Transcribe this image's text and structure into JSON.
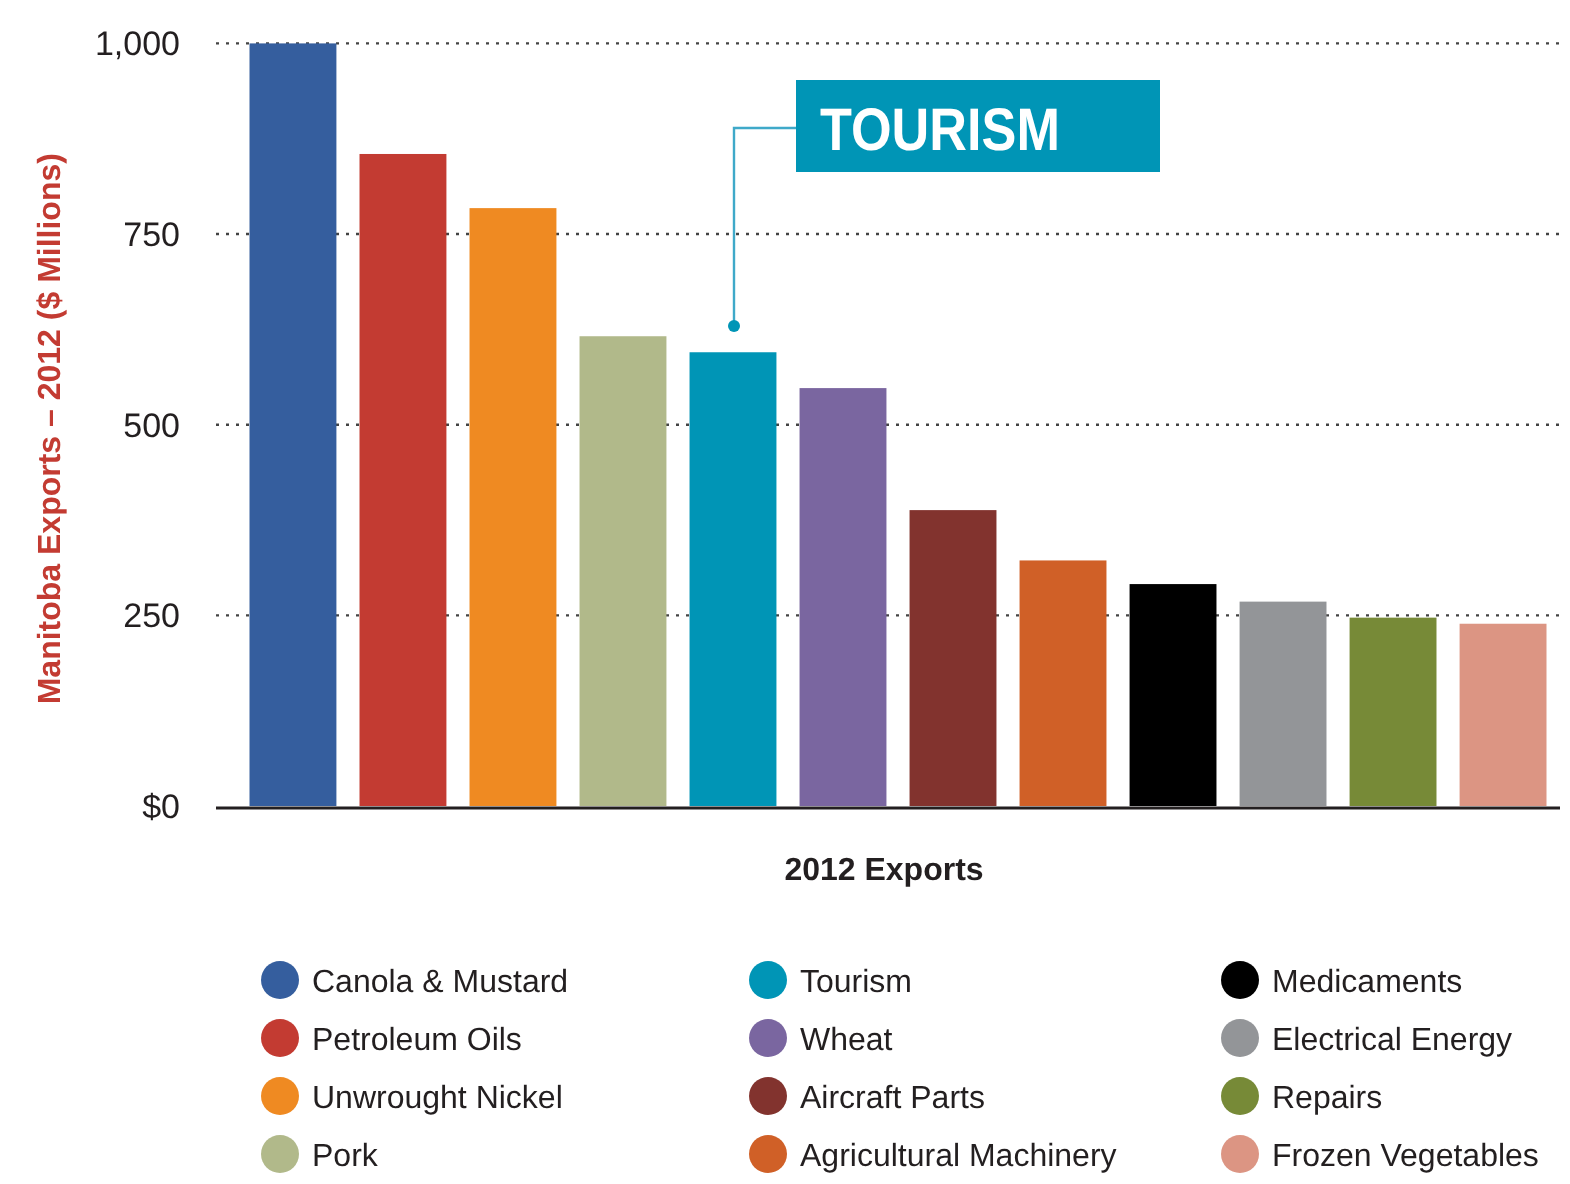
{
  "chart_data": {
    "type": "bar",
    "xlabel": "2012 Exports",
    "ylabel": "Manitoba Exports – 2012 ($ Millions)",
    "stacked": true,
    "categories": [
      null,
      null,
      null,
      null,
      null,
      null,
      null,
      null,
      null,
      null,
      null,
      null
    ],
    "series": [
      {
        "name": "Canola & Mustard",
        "color": "#355e9e",
        "values": [
          1000,
          null,
          null,
          null,
          null,
          null,
          null,
          null,
          null,
          null,
          null,
          null
        ]
      },
      {
        "name": "Petroleum Oils",
        "color": "#c33b32",
        "values": [
          null,
          855,
          null,
          null,
          null,
          null,
          null,
          null,
          null,
          null,
          null,
          null
        ]
      },
      {
        "name": "Unwrought Nickel",
        "color": "#ef8a22",
        "values": [
          null,
          null,
          784,
          null,
          null,
          null,
          null,
          null,
          null,
          null,
          null,
          null
        ]
      },
      {
        "name": "Pork",
        "color": "#b1b98a",
        "values": [
          null,
          null,
          null,
          616,
          null,
          null,
          null,
          null,
          null,
          null,
          null,
          null
        ]
      },
      {
        "name": "Tourism",
        "color": "#0095b6",
        "values": [
          null,
          null,
          null,
          null,
          595,
          null,
          null,
          null,
          null,
          null,
          null,
          null
        ]
      },
      {
        "name": "Wheat",
        "color": "#7a66a0",
        "values": [
          null,
          null,
          null,
          null,
          null,
          548,
          null,
          null,
          null,
          null,
          null,
          null
        ]
      },
      {
        "name": "Aircraft Parts",
        "color": "#82332e",
        "values": [
          null,
          null,
          null,
          null,
          null,
          null,
          388,
          null,
          null,
          null,
          null,
          null
        ]
      },
      {
        "name": "Agricultural Machinery",
        "color": "#d06027",
        "values": [
          null,
          null,
          null,
          null,
          null,
          null,
          null,
          322,
          null,
          null,
          null,
          null
        ]
      },
      {
        "name": "Medicaments",
        "color": "#000000",
        "values": [
          null,
          null,
          null,
          null,
          null,
          null,
          null,
          null,
          291,
          null,
          null,
          null
        ]
      },
      {
        "name": "Electrical Energy",
        "color": "#939598",
        "values": [
          null,
          null,
          null,
          null,
          null,
          null,
          null,
          null,
          null,
          268,
          null,
          null
        ]
      },
      {
        "name": "Repairs",
        "color": "#778a37",
        "values": [
          null,
          null,
          null,
          null,
          null,
          null,
          null,
          null,
          null,
          null,
          247,
          null
        ]
      },
      {
        "name": "Frozen Vegetables",
        "color": "#dc9583",
        "values": [
          null,
          null,
          null,
          null,
          null,
          null,
          null,
          null,
          null,
          null,
          null,
          239
        ]
      }
    ],
    "ylim": [
      0,
      1000
    ],
    "yticks": [
      {
        "value": 0,
        "label": "$0"
      },
      250,
      500,
      750,
      {
        "value": 1000,
        "label": "1,000"
      }
    ],
    "grid": "y",
    "legend": "bottom",
    "tick_labels": "y",
    "annotations": [
      "TOURISM"
    ]
  }
}
